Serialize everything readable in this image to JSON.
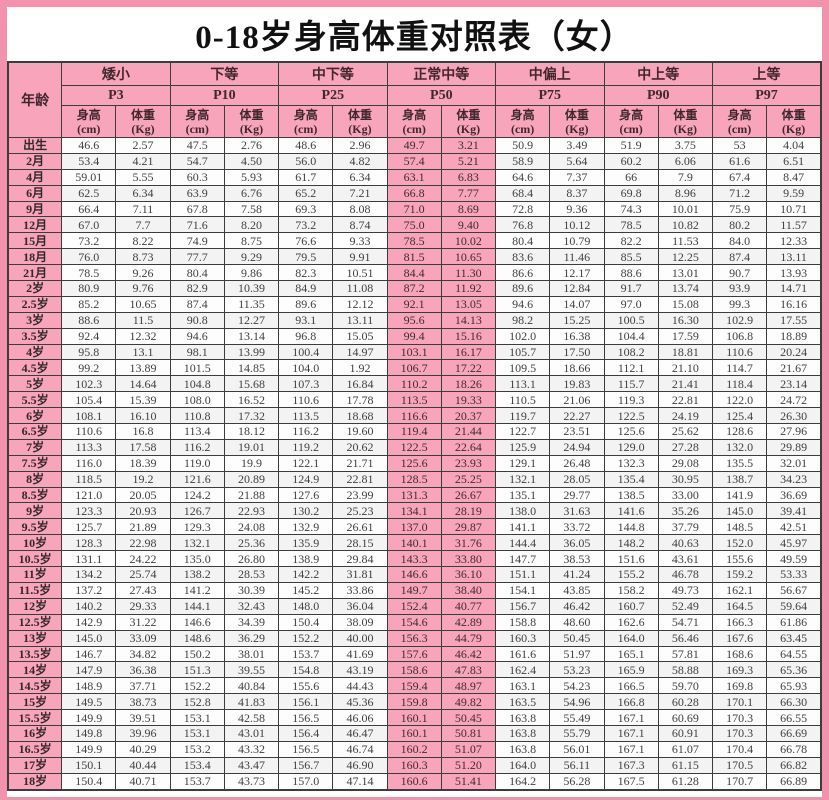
{
  "title": "0-18岁身高体重对照表（女）",
  "colors": {
    "frame_pink": "#f392ad",
    "cell_pink": "#f8a5bc",
    "white_cell": "#fdfdfd",
    "alt_cell": "#f3f3f3",
    "border": "#3c3c3c",
    "title_text": "#111111"
  },
  "table": {
    "age_header": "年龄",
    "highlight_index": 3,
    "categories": [
      {
        "label": "矮小",
        "percentile": "P3"
      },
      {
        "label": "下等",
        "percentile": "P10"
      },
      {
        "label": "中下等",
        "percentile": "P25"
      },
      {
        "label": "正常中等",
        "percentile": "P50"
      },
      {
        "label": "中偏上",
        "percentile": "P75"
      },
      {
        "label": "中上等",
        "percentile": "P90"
      },
      {
        "label": "上等",
        "percentile": "P97"
      }
    ],
    "height_header": [
      "身高",
      "(cm)"
    ],
    "weight_header": [
      "体重",
      "(Kg)"
    ],
    "rows": [
      {
        "age": "出生",
        "values": [
          "46.6",
          "2.57",
          "47.5",
          "2.76",
          "48.6",
          "2.96",
          "49.7",
          "3.21",
          "50.9",
          "3.49",
          "51.9",
          "3.75",
          "53",
          "4.04"
        ]
      },
      {
        "age": "2月",
        "values": [
          "53.4",
          "4.21",
          "54.7",
          "4.50",
          "56.0",
          "4.82",
          "57.4",
          "5.21",
          "58.9",
          "5.64",
          "60.2",
          "6.06",
          "61.6",
          "6.51"
        ]
      },
      {
        "age": "4月",
        "values": [
          "59.01",
          "5.55",
          "60.3",
          "5.93",
          "61.7",
          "6.34",
          "63.1",
          "6.83",
          "64.6",
          "7.37",
          "66",
          "7.9",
          "67.4",
          "8.47"
        ]
      },
      {
        "age": "6月",
        "values": [
          "62.5",
          "6.34",
          "63.9",
          "6.76",
          "65.2",
          "7.21",
          "66.8",
          "7.77",
          "68.4",
          "8.37",
          "69.8",
          "8.96",
          "71.2",
          "9.59"
        ]
      },
      {
        "age": "9月",
        "values": [
          "66.4",
          "7.11",
          "67.8",
          "7.58",
          "69.3",
          "8.08",
          "71.0",
          "8.69",
          "72.8",
          "9.36",
          "74.3",
          "10.01",
          "75.9",
          "10.71"
        ]
      },
      {
        "age": "12月",
        "values": [
          "67.0",
          "7.7",
          "71.6",
          "8.20",
          "73.2",
          "8.74",
          "75.0",
          "9.40",
          "76.8",
          "10.12",
          "78.5",
          "10.82",
          "80.2",
          "11.57"
        ]
      },
      {
        "age": "15月",
        "values": [
          "73.2",
          "8.22",
          "74.9",
          "8.75",
          "76.6",
          "9.33",
          "78.5",
          "10.02",
          "80.4",
          "10.79",
          "82.2",
          "11.53",
          "84.0",
          "12.33"
        ]
      },
      {
        "age": "18月",
        "values": [
          "76.0",
          "8.73",
          "77.7",
          "9.29",
          "79.5",
          "9.91",
          "81.5",
          "10.65",
          "83.6",
          "11.46",
          "85.5",
          "12.25",
          "87.4",
          "13.11"
        ]
      },
      {
        "age": "21月",
        "values": [
          "78.5",
          "9.26",
          "80.4",
          "9.86",
          "82.3",
          "10.51",
          "84.4",
          "11.30",
          "86.6",
          "12.17",
          "88.6",
          "13.01",
          "90.7",
          "13.93"
        ]
      },
      {
        "age": "2岁",
        "values": [
          "80.9",
          "9.76",
          "82.9",
          "10.39",
          "84.9",
          "11.08",
          "87.2",
          "11.92",
          "89.6",
          "12.84",
          "91.7",
          "13.74",
          "93.9",
          "14.71"
        ]
      },
      {
        "age": "2.5岁",
        "values": [
          "85.2",
          "10.65",
          "87.4",
          "11.35",
          "89.6",
          "12.12",
          "92.1",
          "13.05",
          "94.6",
          "14.07",
          "97.0",
          "15.08",
          "99.3",
          "16.16"
        ]
      },
      {
        "age": "3岁",
        "values": [
          "88.6",
          "11.5",
          "90.8",
          "12.27",
          "93.1",
          "13.11",
          "95.6",
          "14.13",
          "98.2",
          "15.25",
          "100.5",
          "16.30",
          "102.9",
          "17.55"
        ]
      },
      {
        "age": "3.5岁",
        "values": [
          "92.4",
          "12.32",
          "94.6",
          "13.14",
          "96.8",
          "15.05",
          "99.4",
          "15.16",
          "102.0",
          "16.38",
          "104.4",
          "17.59",
          "106.8",
          "18.89"
        ]
      },
      {
        "age": "4岁",
        "values": [
          "95.8",
          "13.1",
          "98.1",
          "13.99",
          "100.4",
          "14.97",
          "103.1",
          "16.17",
          "105.7",
          "17.50",
          "108.2",
          "18.81",
          "110.6",
          "20.24"
        ]
      },
      {
        "age": "4.5岁",
        "values": [
          "99.2",
          "13.89",
          "101.5",
          "14.85",
          "104.0",
          "1.92",
          "106.7",
          "17.22",
          "109.5",
          "18.66",
          "112.1",
          "21.10",
          "114.7",
          "21.67"
        ]
      },
      {
        "age": "5岁",
        "values": [
          "102.3",
          "14.64",
          "104.8",
          "15.68",
          "107.3",
          "16.84",
          "110.2",
          "18.26",
          "113.1",
          "19.83",
          "115.7",
          "21.41",
          "118.4",
          "23.14"
        ]
      },
      {
        "age": "5.5岁",
        "values": [
          "105.4",
          "15.39",
          "108.0",
          "16.52",
          "110.6",
          "17.78",
          "113.5",
          "19.33",
          "110.5",
          "21.06",
          "119.3",
          "22.81",
          "122.0",
          "24.72"
        ]
      },
      {
        "age": "6岁",
        "values": [
          "108.1",
          "16.10",
          "110.8",
          "17.32",
          "113.5",
          "18.68",
          "116.6",
          "20.37",
          "119.7",
          "22.27",
          "122.5",
          "24.19",
          "125.4",
          "26.30"
        ]
      },
      {
        "age": "6.5岁",
        "values": [
          "110.6",
          "16.8",
          "113.4",
          "18.12",
          "116.2",
          "19.60",
          "119.4",
          "21.44",
          "122.7",
          "23.51",
          "125.6",
          "25.62",
          "128.6",
          "27.96"
        ]
      },
      {
        "age": "7岁",
        "values": [
          "113.3",
          "17.58",
          "116.2",
          "19.01",
          "119.2",
          "20.62",
          "122.5",
          "22.64",
          "125.9",
          "24.94",
          "129.0",
          "27.28",
          "132.0",
          "29.89"
        ]
      },
      {
        "age": "7.5岁",
        "values": [
          "116.0",
          "18.39",
          "119.0",
          "19.9",
          "122.1",
          "21.71",
          "125.6",
          "23.93",
          "129.1",
          "26.48",
          "132.3",
          "29.08",
          "135.5",
          "32.01"
        ]
      },
      {
        "age": "8岁",
        "values": [
          "118.5",
          "19.2",
          "121.6",
          "20.89",
          "124.9",
          "22.81",
          "128.5",
          "25.25",
          "132.1",
          "28.05",
          "135.4",
          "30.95",
          "138.7",
          "34.23"
        ]
      },
      {
        "age": "8.5岁",
        "values": [
          "121.0",
          "20.05",
          "124.2",
          "21.88",
          "127.6",
          "23.99",
          "131.3",
          "26.67",
          "135.1",
          "29.77",
          "138.5",
          "33.00",
          "141.9",
          "36.69"
        ]
      },
      {
        "age": "9岁",
        "values": [
          "123.3",
          "20.93",
          "126.7",
          "22.93",
          "130.2",
          "25.23",
          "134.1",
          "28.19",
          "138.0",
          "31.63",
          "141.6",
          "35.26",
          "145.0",
          "39.41"
        ]
      },
      {
        "age": "9.5岁",
        "values": [
          "125.7",
          "21.89",
          "129.3",
          "24.08",
          "132.9",
          "26.61",
          "137.0",
          "29.87",
          "141.1",
          "33.72",
          "144.8",
          "37.79",
          "148.5",
          "42.51"
        ]
      },
      {
        "age": "10岁",
        "values": [
          "128.3",
          "22.98",
          "132.1",
          "25.36",
          "135.9",
          "28.15",
          "140.1",
          "31.76",
          "144.4",
          "36.05",
          "148.2",
          "40.63",
          "152.0",
          "45.97"
        ]
      },
      {
        "age": "10.5岁",
        "values": [
          "131.1",
          "24.22",
          "135.0",
          "26.80",
          "138.9",
          "29.84",
          "143.3",
          "33.80",
          "147.7",
          "38.53",
          "151.6",
          "43.61",
          "155.6",
          "49.59"
        ]
      },
      {
        "age": "11岁",
        "values": [
          "134.2",
          "25.74",
          "138.2",
          "28.53",
          "142.2",
          "31.81",
          "146.6",
          "36.10",
          "151.1",
          "41.24",
          "155.2",
          "46.78",
          "159.2",
          "53.33"
        ]
      },
      {
        "age": "11.5岁",
        "values": [
          "137.2",
          "27.43",
          "141.2",
          "30.39",
          "145.2",
          "33.86",
          "149.7",
          "38.40",
          "154.1",
          "43.85",
          "158.2",
          "49.73",
          "162.1",
          "56.67"
        ]
      },
      {
        "age": "12岁",
        "values": [
          "140.2",
          "29.33",
          "144.1",
          "32.43",
          "148.0",
          "36.04",
          "152.4",
          "40.77",
          "156.7",
          "46.42",
          "160.7",
          "52.49",
          "164.5",
          "59.64"
        ]
      },
      {
        "age": "12.5岁",
        "values": [
          "142.9",
          "31.22",
          "146.6",
          "34.39",
          "150.4",
          "38.09",
          "154.6",
          "42.89",
          "158.8",
          "48.60",
          "162.6",
          "54.71",
          "166.3",
          "61.86"
        ]
      },
      {
        "age": "13岁",
        "values": [
          "145.0",
          "33.09",
          "148.6",
          "36.29",
          "152.2",
          "40.00",
          "156.3",
          "44.79",
          "160.3",
          "50.45",
          "164.0",
          "56.46",
          "167.6",
          "63.45"
        ]
      },
      {
        "age": "13.5岁",
        "values": [
          "146.7",
          "34.82",
          "150.2",
          "38.01",
          "153.7",
          "41.69",
          "157.6",
          "46.42",
          "161.6",
          "51.97",
          "165.1",
          "57.81",
          "168.6",
          "64.55"
        ]
      },
      {
        "age": "14岁",
        "values": [
          "147.9",
          "36.38",
          "151.3",
          "39.55",
          "154.8",
          "43.19",
          "158.6",
          "47.83",
          "162.4",
          "53.23",
          "165.9",
          "58.88",
          "169.3",
          "65.36"
        ]
      },
      {
        "age": "14.5岁",
        "values": [
          "148.9",
          "37.71",
          "152.2",
          "40.84",
          "155.6",
          "44.43",
          "159.4",
          "48.97",
          "163.1",
          "54.23",
          "166.5",
          "59.70",
          "169.8",
          "65.93"
        ]
      },
      {
        "age": "15岁",
        "values": [
          "149.5",
          "38.73",
          "152.8",
          "41.83",
          "156.1",
          "45.36",
          "159.8",
          "49.82",
          "163.5",
          "54.96",
          "166.8",
          "60.28",
          "170.1",
          "66.30"
        ]
      },
      {
        "age": "15.5岁",
        "values": [
          "149.9",
          "39.51",
          "153.1",
          "42.58",
          "156.5",
          "46.06",
          "160.1",
          "50.45",
          "163.8",
          "55.49",
          "167.1",
          "60.69",
          "170.3",
          "66.55"
        ]
      },
      {
        "age": "16岁",
        "values": [
          "149.8",
          "39.96",
          "153.1",
          "43.01",
          "156.4",
          "46.47",
          "160.1",
          "50.81",
          "163.8",
          "55.79",
          "167.1",
          "60.91",
          "170.3",
          "66.69"
        ]
      },
      {
        "age": "16.5岁",
        "values": [
          "149.9",
          "40.29",
          "153.2",
          "43.32",
          "156.5",
          "46.74",
          "160.2",
          "51.07",
          "163.8",
          "56.01",
          "167.1",
          "61.07",
          "170.4",
          "66.78"
        ]
      },
      {
        "age": "17岁",
        "values": [
          "150.1",
          "40.44",
          "153.4",
          "43.47",
          "156.7",
          "46.90",
          "160.3",
          "51.20",
          "164.0",
          "56.11",
          "167.3",
          "61.15",
          "170.5",
          "66.82"
        ]
      },
      {
        "age": "18岁",
        "values": [
          "150.4",
          "40.71",
          "153.7",
          "43.73",
          "157.0",
          "47.14",
          "160.6",
          "51.41",
          "164.2",
          "56.28",
          "167.5",
          "61.28",
          "170.7",
          "66.89"
        ]
      }
    ]
  }
}
